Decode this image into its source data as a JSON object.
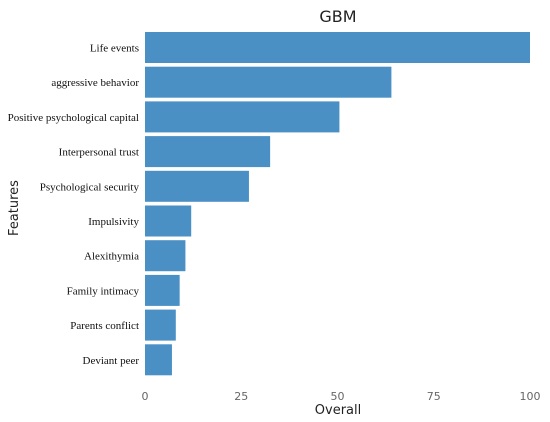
{
  "chart_data": {
    "type": "bar",
    "orientation": "horizontal",
    "title": "GBM",
    "xlabel": "Overall",
    "ylabel": "Features",
    "categories": [
      "Life events",
      "aggressive behavior",
      "Positive psychological capital",
      "Interpersonal trust",
      "Psychological security",
      "Impulsivity",
      "Alexithymia",
      "Family  intimacy",
      "Parents conflict",
      "Deviant peer"
    ],
    "values": [
      100,
      64,
      50.5,
      32.5,
      27,
      12,
      10.5,
      9,
      8,
      7
    ],
    "xlim": [
      0,
      100
    ],
    "xticks": [
      0,
      25,
      50,
      75,
      100
    ],
    "grid": false,
    "legend": "none",
    "bar_color": "#4a90c4"
  }
}
